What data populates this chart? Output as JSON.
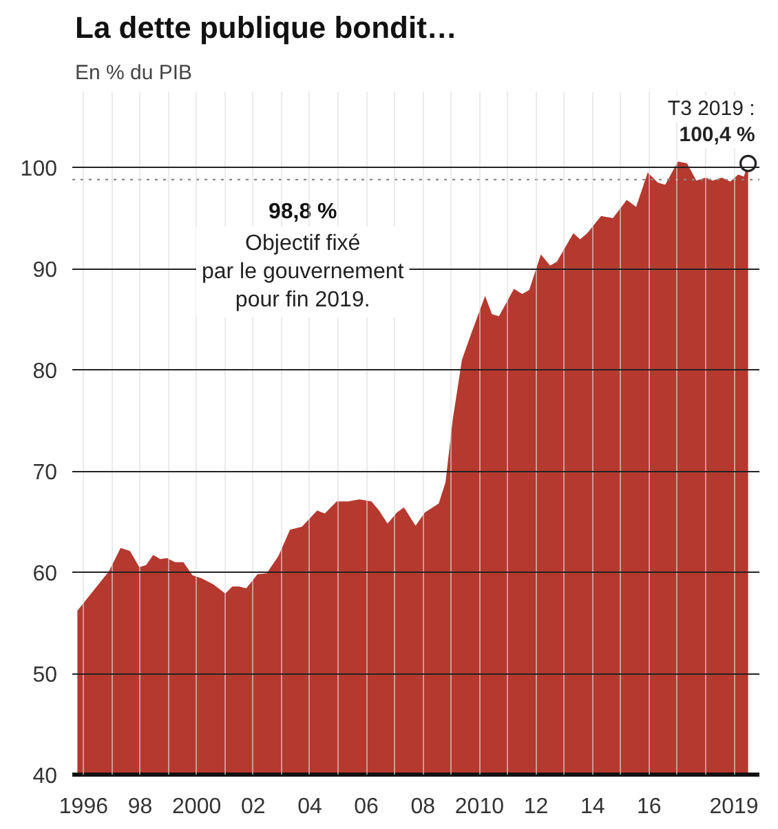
{
  "chart_data": {
    "type": "area",
    "title": "La dette publique bondit…",
    "subtitle": "En % du PIB",
    "x": [
      1995.78,
      1996.9,
      1997.31,
      1997.64,
      1997.97,
      1998.21,
      1998.46,
      1998.71,
      1998.95,
      1999.23,
      1999.53,
      1999.85,
      2000.18,
      2000.59,
      2001.01,
      2001.26,
      2001.5,
      2001.75,
      2002.15,
      2002.48,
      2002.89,
      2003.3,
      2003.72,
      2004.26,
      2004.53,
      2004.95,
      2005.36,
      2005.76,
      2006.18,
      2006.45,
      2006.75,
      2007.08,
      2007.33,
      2007.74,
      2008.07,
      2008.56,
      2008.8,
      2009.05,
      2009.38,
      2009.71,
      2010.2,
      2010.44,
      2010.69,
      2011.22,
      2011.51,
      2011.76,
      2012.17,
      2012.5,
      2012.74,
      2013.32,
      2013.56,
      2013.81,
      2014.3,
      2014.72,
      2015.21,
      2015.54,
      2015.95,
      2016.31,
      2016.57,
      2017.02,
      2017.34,
      2017.67,
      2018.0,
      2018.25,
      2018.57,
      2018.87,
      2019.15,
      2019.35,
      2019.5
    ],
    "series": [
      {
        "color": "#b5392e",
        "values": [
          56.2,
          60.1,
          62.4,
          62.1,
          60.5,
          60.7,
          61.7,
          61.3,
          61.4,
          61.0,
          61.0,
          59.7,
          59.4,
          58.8,
          57.9,
          58.6,
          58.6,
          58.4,
          59.8,
          59.9,
          61.6,
          64.2,
          64.5,
          66.1,
          65.8,
          67.0,
          67.0,
          67.2,
          67.0,
          66.1,
          64.8,
          65.9,
          66.4,
          64.6,
          65.9,
          66.8,
          68.9,
          75.0,
          81.0,
          83.6,
          87.3,
          85.5,
          85.3,
          88.0,
          87.5,
          87.9,
          91.4,
          90.3,
          90.7,
          93.5,
          92.9,
          93.5,
          95.2,
          95.0,
          96.8,
          96.1,
          99.5,
          98.5,
          98.3,
          100.6,
          100.4,
          98.7,
          99.0,
          98.7,
          99.0,
          98.6,
          99.3,
          99.1,
          100.4
        ]
      },
      {
        "type": "scatter",
        "x": [
          2019.5
        ],
        "values": [
          100.4
        ],
        "color": "#222222",
        "marker": "circle"
      }
    ],
    "xlim": [
      1995.6,
      2019.9
    ],
    "ylim": [
      40,
      107.5
    ],
    "xticks": [
      1996,
      {
        "value": 1997,
        "label": null
      },
      {
        "value": 1998,
        "label": "98"
      },
      {
        "value": 1999,
        "label": null
      },
      2000,
      {
        "value": 2001,
        "label": null
      },
      {
        "value": 2002,
        "label": "02"
      },
      {
        "value": 2003,
        "label": null
      },
      {
        "value": 2004,
        "label": "04"
      },
      {
        "value": 2005,
        "label": null
      },
      {
        "value": 2006,
        "label": "06"
      },
      {
        "value": 2007,
        "label": null
      },
      {
        "value": 2008,
        "label": "08"
      },
      {
        "value": 2009,
        "label": null
      },
      2010,
      {
        "value": 2011,
        "label": null
      },
      {
        "value": 2012,
        "label": "12"
      },
      {
        "value": 2013,
        "label": null
      },
      {
        "value": 2014,
        "label": "14"
      },
      {
        "value": 2015,
        "label": null
      },
      {
        "value": 2016,
        "label": "16"
      },
      {
        "value": 2017,
        "label": null
      },
      {
        "value": 2018,
        "label": null
      },
      2019
    ],
    "yticks": [
      40,
      50,
      60,
      70,
      80,
      90,
      100
    ],
    "grid": true,
    "ref_lines": [
      {
        "axis": "y",
        "value": 98.8,
        "label": "98,8 %",
        "color": "#888888",
        "line_style": "dotted"
      }
    ],
    "annotations": [
      "Objectif fixé\npar le gouvernement\npour fin 2019.",
      {
        "text": "T3 2019 :",
        "x": 2019.5,
        "y": 100.4
      },
      {
        "text": "100,4 %",
        "x": 2019.5,
        "y": 100.4
      }
    ]
  }
}
